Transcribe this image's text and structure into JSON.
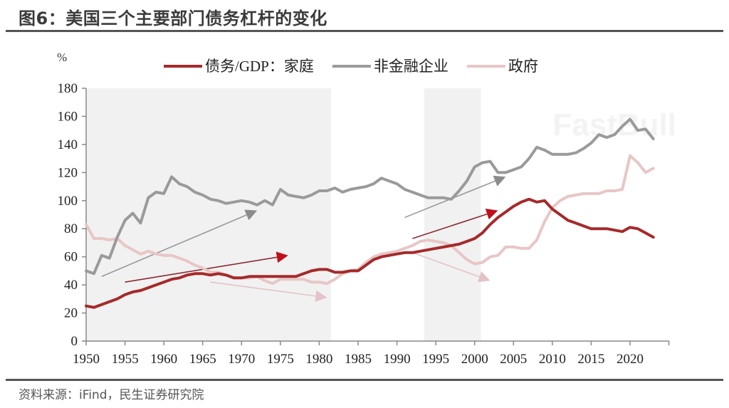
{
  "figure": {
    "title": "图6：美国三个主要部门债务杠杆的变化",
    "source": "资料来源：iFind，民生证券研究院",
    "watermark": "FastBull"
  },
  "chart_data": {
    "type": "line",
    "title": "图6：美国三个主要部门债务杠杆的变化",
    "xlabel": "",
    "ylabel": "%",
    "xlim": [
      1950,
      2023
    ],
    "ylim": [
      0,
      180
    ],
    "yticks": [
      0,
      20,
      40,
      60,
      80,
      100,
      120,
      140,
      160,
      180
    ],
    "xticks": [
      1950,
      1955,
      1960,
      1965,
      1970,
      1975,
      1980,
      1985,
      1990,
      1995,
      2000,
      2005,
      2010,
      2015,
      2020
    ],
    "grid": false,
    "legend_position": "top",
    "shaded_periods": [
      {
        "start": 1950,
        "end": 1981.5
      },
      {
        "start": 1993.5,
        "end": 2000.8
      }
    ],
    "x": [
      1950,
      1951,
      1952,
      1953,
      1954,
      1955,
      1956,
      1957,
      1958,
      1959,
      1960,
      1961,
      1962,
      1963,
      1964,
      1965,
      1966,
      1967,
      1968,
      1969,
      1970,
      1971,
      1972,
      1973,
      1974,
      1975,
      1976,
      1977,
      1978,
      1979,
      1980,
      1981,
      1982,
      1983,
      1984,
      1985,
      1986,
      1987,
      1988,
      1989,
      1990,
      1991,
      1992,
      1993,
      1994,
      1995,
      1996,
      1997,
      1998,
      1999,
      2000,
      2001,
      2002,
      2003,
      2004,
      2005,
      2006,
      2007,
      2008,
      2009,
      2010,
      2011,
      2012,
      2013,
      2014,
      2015,
      2016,
      2017,
      2018,
      2019,
      2020,
      2021,
      2022,
      2023
    ],
    "series": [
      {
        "name": "债务/GDP：家庭",
        "color": "#a52a2a",
        "values": [
          25,
          24,
          26,
          28,
          30,
          33,
          35,
          36,
          38,
          40,
          42,
          44,
          45,
          47,
          48,
          48,
          47,
          48,
          47,
          45,
          45,
          46,
          46,
          46,
          46,
          46,
          46,
          46,
          48,
          50,
          51,
          51,
          49,
          49,
          50,
          50,
          54,
          58,
          60,
          61,
          62,
          63,
          63,
          64,
          65,
          66,
          67,
          68,
          69,
          71,
          73,
          77,
          83,
          88,
          92,
          96,
          99,
          101,
          99,
          100,
          94,
          90,
          86,
          84,
          82,
          80,
          80,
          80,
          79,
          78,
          81,
          80,
          77,
          74
        ]
      },
      {
        "name": "非金融企业",
        "color": "#9a9a9a",
        "values": [
          50,
          48,
          61,
          59,
          74,
          86,
          91,
          84,
          102,
          106,
          105,
          117,
          112,
          110,
          106,
          104,
          101,
          100,
          98,
          99,
          100,
          99,
          97,
          100,
          97,
          108,
          104,
          103,
          102,
          104,
          107,
          107,
          109,
          106,
          108,
          109,
          110,
          112,
          116,
          114,
          112,
          108,
          106,
          104,
          102,
          102,
          102,
          101,
          107,
          114,
          124,
          127,
          128,
          120,
          120,
          122,
          124,
          130,
          138,
          136,
          133,
          133,
          133,
          134,
          137,
          141,
          147,
          145,
          147,
          153,
          158,
          150,
          151,
          144
        ]
      },
      {
        "name": "政府",
        "color": "#e8c6c6",
        "values": [
          83,
          73,
          73,
          72,
          73,
          68,
          65,
          62,
          64,
          62,
          61,
          61,
          59,
          57,
          54,
          52,
          49,
          49,
          47,
          45,
          45,
          45,
          46,
          43,
          41,
          44,
          44,
          44,
          44,
          42,
          42,
          41,
          44,
          48,
          50,
          51,
          56,
          60,
          62,
          63,
          64,
          66,
          68,
          71,
          72,
          71,
          70,
          68,
          63,
          58,
          55,
          56,
          60,
          61,
          67,
          67,
          66,
          66,
          72,
          85,
          95,
          100,
          103,
          104,
          105,
          105,
          105,
          107,
          107,
          108,
          132,
          127,
          120,
          123
        ]
      }
    ],
    "trend_arrows": [
      {
        "series": "非金融企业",
        "from": [
          1952,
          46
        ],
        "to": [
          1972,
          93
        ]
      },
      {
        "series": "债务/GDP：家庭",
        "from": [
          1955,
          42
        ],
        "to": [
          1976,
          61
        ]
      },
      {
        "series": "政府",
        "from": [
          1966,
          42
        ],
        "to": [
          1981,
          31
        ]
      },
      {
        "series": "非金融企业",
        "from": [
          1991,
          88
        ],
        "to": [
          2004,
          117
        ]
      },
      {
        "series": "债务/GDP：家庭",
        "from": [
          1992,
          73
        ],
        "to": [
          2003,
          93
        ]
      },
      {
        "series": "政府",
        "from": [
          1992,
          63
        ],
        "to": [
          2002,
          43
        ]
      }
    ]
  }
}
